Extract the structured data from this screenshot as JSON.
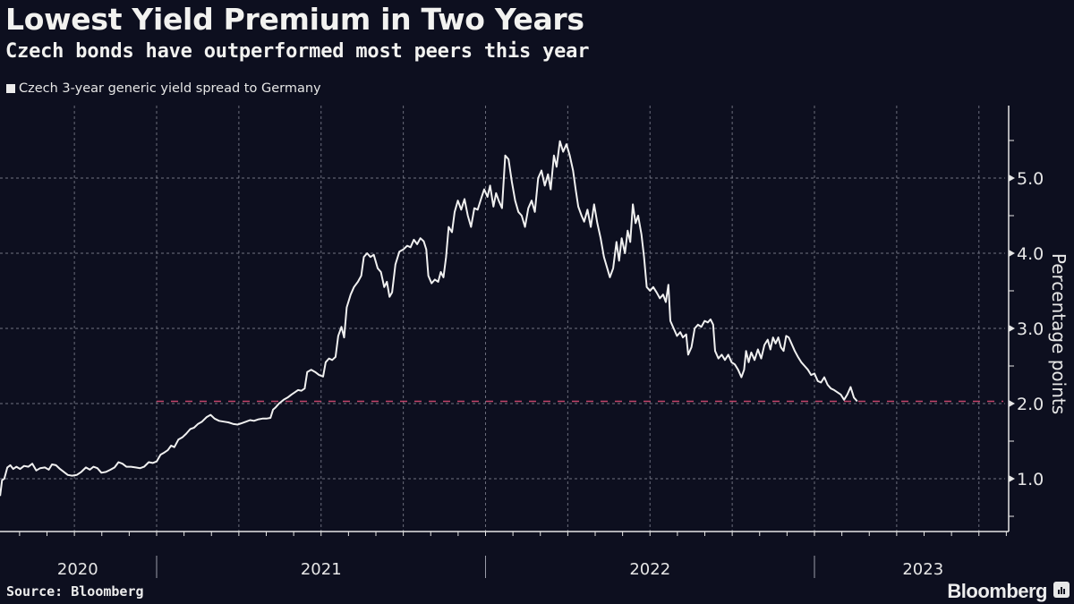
{
  "title": "Lowest Yield Premium in Two Years",
  "subtitle": "Czech bonds have outperformed most peers this year",
  "source": "Source: Bloomberg",
  "brand": "Bloomberg",
  "colors": {
    "background": "#0d0f1f",
    "line": "#f0f0f0",
    "reference_line": "#c2456a",
    "grid": "#8a8c99",
    "axis": "#e6e6e6"
  },
  "chart_data": {
    "type": "line",
    "title": "Lowest Yield Premium in Two Years",
    "subtitle": "Czech bonds have outperformed most peers this year",
    "xlabel": "",
    "ylabel": "Percentage points",
    "xlim": [
      2020.52,
      2023.58
    ],
    "ylim": [
      0.3,
      5.9
    ],
    "y_ticks": [
      1.0,
      2.0,
      3.0,
      4.0,
      5.0
    ],
    "y_tick_labels": [
      "1.0",
      "2.0",
      "3.0",
      "4.0",
      "5.0"
    ],
    "y_minor_ticks": [
      0.5,
      1.5,
      2.5,
      3.5,
      4.5,
      5.5
    ],
    "x_year_labels": [
      {
        "label": "2020",
        "center": 2020.76
      },
      {
        "label": "2021",
        "center": 2021.5
      },
      {
        "label": "2022",
        "center": 2022.5
      },
      {
        "label": "2023",
        "center": 2023.33
      }
    ],
    "x_year_boundaries": [
      2021.0,
      2022.0,
      2023.0
    ],
    "grid": true,
    "legend": {
      "placement": "top-left",
      "entries": [
        "Czech 3-year generic yield spread to Germany"
      ]
    },
    "reference_line": {
      "value": 2.03,
      "from": 2021.0,
      "style": "dashed"
    },
    "series": [
      {
        "name": "Czech 3-year generic yield spread to Germany",
        "points": [
          [
            2020.524,
            0.77
          ],
          [
            2020.53,
            0.98
          ],
          [
            2020.537,
            1.0
          ],
          [
            2020.546,
            1.15
          ],
          [
            2020.555,
            1.18
          ],
          [
            2020.564,
            1.13
          ],
          [
            2020.574,
            1.16
          ],
          [
            2020.585,
            1.13
          ],
          [
            2020.597,
            1.17
          ],
          [
            2020.61,
            1.16
          ],
          [
            2020.622,
            1.2
          ],
          [
            2020.634,
            1.11
          ],
          [
            2020.646,
            1.14
          ],
          [
            2020.66,
            1.15
          ],
          [
            2020.672,
            1.12
          ],
          [
            2020.682,
            1.19
          ],
          [
            2020.694,
            1.18
          ],
          [
            2020.706,
            1.13
          ],
          [
            2020.718,
            1.09
          ],
          [
            2020.73,
            1.05
          ],
          [
            2020.743,
            1.04
          ],
          [
            2020.757,
            1.05
          ],
          [
            2020.771,
            1.09
          ],
          [
            2020.785,
            1.15
          ],
          [
            2020.797,
            1.12
          ],
          [
            2020.808,
            1.16
          ],
          [
            2020.82,
            1.14
          ],
          [
            2020.832,
            1.08
          ],
          [
            2020.846,
            1.09
          ],
          [
            2020.86,
            1.12
          ],
          [
            2020.872,
            1.15
          ],
          [
            2020.884,
            1.22
          ],
          [
            2020.896,
            1.2
          ],
          [
            2020.908,
            1.16
          ],
          [
            2020.922,
            1.16
          ],
          [
            2020.936,
            1.15
          ],
          [
            2020.95,
            1.14
          ],
          [
            2020.962,
            1.16
          ],
          [
            2020.976,
            1.22
          ],
          [
            2020.988,
            1.21
          ],
          [
            2021.0,
            1.23
          ],
          [
            2021.012,
            1.32
          ],
          [
            2021.024,
            1.35
          ],
          [
            2021.034,
            1.38
          ],
          [
            2021.044,
            1.44
          ],
          [
            2021.054,
            1.42
          ],
          [
            2021.066,
            1.52
          ],
          [
            2021.078,
            1.55
          ],
          [
            2021.09,
            1.6
          ],
          [
            2021.102,
            1.66
          ],
          [
            2021.114,
            1.68
          ],
          [
            2021.126,
            1.73
          ],
          [
            2021.138,
            1.76
          ],
          [
            2021.152,
            1.82
          ],
          [
            2021.164,
            1.85
          ],
          [
            2021.176,
            1.8
          ],
          [
            2021.19,
            1.77
          ],
          [
            2021.204,
            1.76
          ],
          [
            2021.218,
            1.75
          ],
          [
            2021.232,
            1.73
          ],
          [
            2021.246,
            1.72
          ],
          [
            2021.26,
            1.74
          ],
          [
            2021.272,
            1.76
          ],
          [
            2021.284,
            1.78
          ],
          [
            2021.296,
            1.77
          ],
          [
            2021.31,
            1.79
          ],
          [
            2021.322,
            1.8
          ],
          [
            2021.334,
            1.8
          ],
          [
            2021.346,
            1.81
          ],
          [
            2021.354,
            1.92
          ],
          [
            2021.362,
            1.95
          ],
          [
            2021.372,
            2.0
          ],
          [
            2021.386,
            2.05
          ],
          [
            2021.398,
            2.08
          ],
          [
            2021.41,
            2.12
          ],
          [
            2021.42,
            2.15
          ],
          [
            2021.43,
            2.18
          ],
          [
            2021.44,
            2.17
          ],
          [
            2021.45,
            2.2
          ],
          [
            2021.458,
            2.42
          ],
          [
            2021.47,
            2.45
          ],
          [
            2021.482,
            2.42
          ],
          [
            2021.494,
            2.38
          ],
          [
            2021.506,
            2.36
          ],
          [
            2021.514,
            2.55
          ],
          [
            2021.524,
            2.6
          ],
          [
            2021.534,
            2.58
          ],
          [
            2021.544,
            2.62
          ],
          [
            2021.552,
            2.9
          ],
          [
            2021.562,
            3.02
          ],
          [
            2021.57,
            2.88
          ],
          [
            2021.578,
            3.28
          ],
          [
            2021.59,
            3.45
          ],
          [
            2021.6,
            3.55
          ],
          [
            2021.612,
            3.62
          ],
          [
            2021.622,
            3.7
          ],
          [
            2021.63,
            3.95
          ],
          [
            2021.64,
            4.0
          ],
          [
            2021.65,
            3.95
          ],
          [
            2021.66,
            3.98
          ],
          [
            2021.672,
            3.8
          ],
          [
            2021.682,
            3.75
          ],
          [
            2021.692,
            3.55
          ],
          [
            2021.7,
            3.62
          ],
          [
            2021.708,
            3.42
          ],
          [
            2021.716,
            3.48
          ],
          [
            2021.726,
            3.85
          ],
          [
            2021.738,
            4.02
          ],
          [
            2021.75,
            4.05
          ],
          [
            2021.762,
            4.1
          ],
          [
            2021.772,
            4.08
          ],
          [
            2021.782,
            4.18
          ],
          [
            2021.792,
            4.12
          ],
          [
            2021.802,
            4.2
          ],
          [
            2021.812,
            4.16
          ],
          [
            2021.82,
            4.05
          ],
          [
            2021.826,
            3.7
          ],
          [
            2021.836,
            3.6
          ],
          [
            2021.846,
            3.65
          ],
          [
            2021.856,
            3.62
          ],
          [
            2021.864,
            3.75
          ],
          [
            2021.872,
            3.68
          ],
          [
            2021.88,
            3.95
          ],
          [
            2021.888,
            4.35
          ],
          [
            2021.898,
            4.28
          ],
          [
            2021.906,
            4.55
          ],
          [
            2021.916,
            4.7
          ],
          [
            2021.926,
            4.58
          ],
          [
            2021.936,
            4.72
          ],
          [
            2021.946,
            4.5
          ],
          [
            2021.956,
            4.35
          ],
          [
            2021.966,
            4.6
          ],
          [
            2021.976,
            4.58
          ],
          [
            2021.986,
            4.72
          ],
          [
            2021.996,
            4.85
          ],
          [
            2022.006,
            4.75
          ],
          [
            2022.014,
            4.9
          ],
          [
            2022.024,
            4.62
          ],
          [
            2022.032,
            4.8
          ],
          [
            2022.04,
            4.7
          ],
          [
            2022.05,
            4.6
          ],
          [
            2022.06,
            5.3
          ],
          [
            2022.07,
            5.25
          ],
          [
            2022.08,
            4.95
          ],
          [
            2022.09,
            4.7
          ],
          [
            2022.1,
            4.55
          ],
          [
            2022.11,
            4.5
          ],
          [
            2022.12,
            4.35
          ],
          [
            2022.13,
            4.6
          ],
          [
            2022.14,
            4.7
          ],
          [
            2022.15,
            4.55
          ],
          [
            2022.16,
            5.0
          ],
          [
            2022.17,
            5.1
          ],
          [
            2022.18,
            4.9
          ],
          [
            2022.19,
            5.05
          ],
          [
            2022.198,
            4.85
          ],
          [
            2022.208,
            5.3
          ],
          [
            2022.216,
            5.15
          ],
          [
            2022.226,
            5.49
          ],
          [
            2022.236,
            5.35
          ],
          [
            2022.246,
            5.45
          ],
          [
            2022.256,
            5.3
          ],
          [
            2022.266,
            5.1
          ],
          [
            2022.274,
            4.85
          ],
          [
            2022.282,
            4.62
          ],
          [
            2022.292,
            4.5
          ],
          [
            2022.3,
            4.42
          ],
          [
            2022.31,
            4.58
          ],
          [
            2022.32,
            4.35
          ],
          [
            2022.33,
            4.65
          ],
          [
            2022.34,
            4.4
          ],
          [
            2022.35,
            4.2
          ],
          [
            2022.36,
            3.95
          ],
          [
            2022.37,
            3.8
          ],
          [
            2022.378,
            3.68
          ],
          [
            2022.388,
            3.8
          ],
          [
            2022.398,
            4.15
          ],
          [
            2022.406,
            3.9
          ],
          [
            2022.414,
            4.2
          ],
          [
            2022.424,
            4.0
          ],
          [
            2022.432,
            4.3
          ],
          [
            2022.44,
            4.15
          ],
          [
            2022.448,
            4.65
          ],
          [
            2022.456,
            4.4
          ],
          [
            2022.464,
            4.5
          ],
          [
            2022.474,
            4.25
          ],
          [
            2022.482,
            3.95
          ],
          [
            2022.49,
            3.55
          ],
          [
            2022.5,
            3.5
          ],
          [
            2022.51,
            3.55
          ],
          [
            2022.52,
            3.48
          ],
          [
            2022.53,
            3.4
          ],
          [
            2022.54,
            3.45
          ],
          [
            2022.548,
            3.35
          ],
          [
            2022.556,
            3.58
          ],
          [
            2022.562,
            3.1
          ],
          [
            2022.572,
            3.0
          ],
          [
            2022.582,
            2.9
          ],
          [
            2022.592,
            2.95
          ],
          [
            2022.6,
            2.88
          ],
          [
            2022.61,
            2.92
          ],
          [
            2022.616,
            2.65
          ],
          [
            2022.626,
            2.75
          ],
          [
            2022.636,
            3.0
          ],
          [
            2022.646,
            3.05
          ],
          [
            2022.656,
            3.02
          ],
          [
            2022.666,
            3.1
          ],
          [
            2022.676,
            3.08
          ],
          [
            2022.684,
            3.12
          ],
          [
            2022.692,
            3.05
          ],
          [
            2022.698,
            2.7
          ],
          [
            2022.708,
            2.6
          ],
          [
            2022.718,
            2.65
          ],
          [
            2022.728,
            2.58
          ],
          [
            2022.738,
            2.65
          ],
          [
            2022.748,
            2.55
          ],
          [
            2022.758,
            2.52
          ],
          [
            2022.768,
            2.45
          ],
          [
            2022.778,
            2.35
          ],
          [
            2022.786,
            2.45
          ],
          [
            2022.792,
            2.7
          ],
          [
            2022.8,
            2.55
          ],
          [
            2022.808,
            2.68
          ],
          [
            2022.818,
            2.58
          ],
          [
            2022.828,
            2.72
          ],
          [
            2022.838,
            2.6
          ],
          [
            2022.848,
            2.78
          ],
          [
            2022.858,
            2.85
          ],
          [
            2022.866,
            2.72
          ],
          [
            2022.874,
            2.88
          ],
          [
            2022.882,
            2.8
          ],
          [
            2022.89,
            2.88
          ],
          [
            2022.898,
            2.75
          ],
          [
            2022.906,
            2.7
          ],
          [
            2022.914,
            2.9
          ],
          [
            2022.922,
            2.88
          ],
          [
            2022.93,
            2.8
          ],
          [
            2022.94,
            2.7
          ],
          [
            2022.95,
            2.62
          ],
          [
            2022.96,
            2.55
          ],
          [
            2022.97,
            2.5
          ],
          [
            2022.98,
            2.45
          ],
          [
            2022.99,
            2.38
          ],
          [
            2023.0,
            2.4
          ],
          [
            2023.01,
            2.3
          ],
          [
            2023.02,
            2.28
          ],
          [
            2023.03,
            2.35
          ],
          [
            2023.04,
            2.25
          ],
          [
            2023.05,
            2.2
          ],
          [
            2023.06,
            2.18
          ],
          [
            2023.07,
            2.15
          ],
          [
            2023.08,
            2.12
          ],
          [
            2023.09,
            2.05
          ],
          [
            2023.1,
            2.12
          ],
          [
            2023.11,
            2.22
          ],
          [
            2023.12,
            2.08
          ],
          [
            2023.13,
            2.03
          ]
        ]
      }
    ]
  }
}
